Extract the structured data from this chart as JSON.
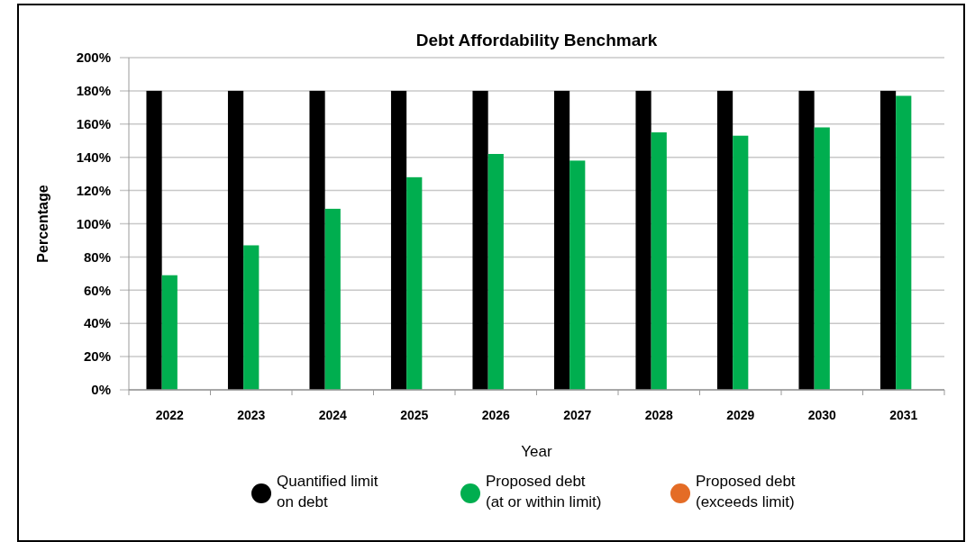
{
  "chart_data": {
    "type": "bar",
    "title": "Debt Affordability Benchmark",
    "xlabel": "Year",
    "ylabel": "Percentage",
    "categories": [
      "2022",
      "2023",
      "2024",
      "2025",
      "2026",
      "2027",
      "2028",
      "2029",
      "2030",
      "2031"
    ],
    "series": [
      {
        "name": "Quantified limit on debt",
        "color": "#000000",
        "values": [
          180,
          180,
          180,
          180,
          180,
          180,
          180,
          180,
          180,
          180
        ]
      },
      {
        "name": "Proposed debt (at or within limit)",
        "color": "#00ae4f",
        "values": [
          69,
          87,
          109,
          128,
          142,
          138,
          155,
          153,
          158,
          177
        ]
      },
      {
        "name": "Proposed debt (exceeds limit)",
        "color": "#e46c26",
        "values": [
          null,
          null,
          null,
          null,
          null,
          null,
          null,
          null,
          null,
          null
        ]
      }
    ],
    "ylim": [
      0,
      200
    ],
    "yticks": [
      {
        "value": 0,
        "label": "0%"
      },
      {
        "value": 20,
        "label": "20%"
      },
      {
        "value": 40,
        "label": "40%"
      },
      {
        "value": 60,
        "label": "60%"
      },
      {
        "value": 80,
        "label": "80%"
      },
      {
        "value": 100,
        "label": "100%"
      },
      {
        "value": 120,
        "label": "120%"
      },
      {
        "value": 140,
        "label": "140%"
      },
      {
        "value": 160,
        "label": "160%"
      },
      {
        "value": 180,
        "label": "180%"
      },
      {
        "value": 200,
        "label": "200%"
      }
    ],
    "grid": "y",
    "legend": "bottom"
  }
}
